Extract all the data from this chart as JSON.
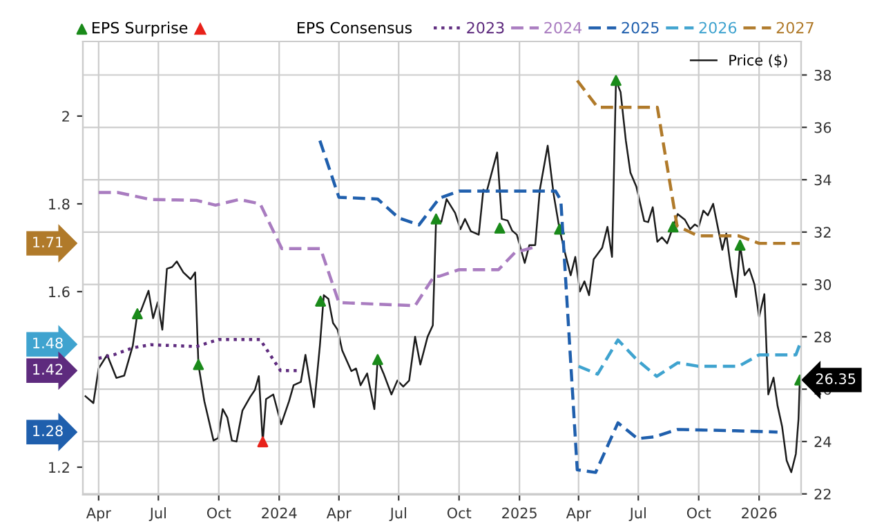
{
  "chart_data": {
    "type": "line",
    "legend_title": "EPS Consensus",
    "xlim": [
      "2023-03-08",
      "2026-03-06"
    ],
    "xticks": [
      {
        "value": "2023-04-01",
        "label": "Apr"
      },
      {
        "value": "2023-07-01",
        "label": "Jul"
      },
      {
        "value": "2023-10-01",
        "label": "Oct"
      },
      {
        "value": "2024-01-01",
        "label": "2024"
      },
      {
        "value": "2024-04-01",
        "label": "Apr"
      },
      {
        "value": "2024-07-01",
        "label": "Jul"
      },
      {
        "value": "2024-10-01",
        "label": "Oct"
      },
      {
        "value": "2025-01-01",
        "label": "2025"
      },
      {
        "value": "2025-04-01",
        "label": "Apr"
      },
      {
        "value": "2025-07-01",
        "label": "Jul"
      },
      {
        "value": "2025-10-01",
        "label": "Oct"
      },
      {
        "value": "2026-01-01",
        "label": "2026"
      }
    ],
    "ylim": [
      1.137,
      2.17
    ],
    "yticks": [
      1.2,
      1.6,
      1.8,
      2
    ],
    "y2label": null,
    "y2lim": [
      21.965,
      39.28
    ],
    "y2ticks": [
      22,
      24,
      26,
      28,
      30,
      32,
      34,
      36,
      38
    ],
    "grid": true,
    "annotations": [
      "1.71",
      "1.48",
      "1.42",
      "1.28"
    ],
    "legend": "top",
    "series": [
      {
        "name": "2023",
        "color": "#5e2b7e",
        "line_style": "dotted",
        "x": [
          "2023-04-01",
          "2023-04-24",
          "2023-05-23",
          "2023-06-19",
          "2023-08-28",
          "2023-10-01",
          "2023-12-03",
          "2024-01-03",
          "2024-02-01"
        ],
        "values": [
          1.448,
          1.456,
          1.472,
          1.479,
          1.475,
          1.491,
          1.491,
          1.42,
          1.42
        ]
      },
      {
        "name": "2024",
        "color": "#a97cc0",
        "line_style": "dashed",
        "x": [
          "2023-04-01",
          "2023-04-30",
          "2023-06-19",
          "2023-08-28",
          "2023-09-26",
          "2023-11-01",
          "2023-12-03",
          "2024-01-05",
          "2024-03-04",
          "2024-04-01",
          "2024-07-26",
          "2024-08-24",
          "2024-09-01",
          "2024-10-01",
          "2024-11-30",
          "2024-12-25",
          "2025-01-28"
        ],
        "values": [
          1.826,
          1.826,
          1.81,
          1.808,
          1.797,
          1.81,
          1.8,
          1.698,
          1.698,
          1.575,
          1.568,
          1.635,
          1.635,
          1.65,
          1.65,
          1.689,
          1.703
        ]
      },
      {
        "name": "2025",
        "color": "#1f5fad",
        "line_style": "dashed",
        "x": [
          "2024-03-03",
          "2024-04-01",
          "2024-05-30",
          "2024-07-01",
          "2024-08-01",
          "2024-09-01",
          "2024-10-01",
          "2025-02-25",
          "2025-03-05",
          "2025-03-30",
          "2025-04-27",
          "2025-05-31",
          "2025-06-30",
          "2025-07-25",
          "2025-08-30",
          "2025-11-25",
          "2026-01-29"
        ],
        "values": [
          1.944,
          1.815,
          1.811,
          1.768,
          1.752,
          1.813,
          1.829,
          1.829,
          1.808,
          1.194,
          1.188,
          1.301,
          1.265,
          1.269,
          1.286,
          1.283,
          1.28
        ]
      },
      {
        "name": "2026",
        "color": "#3fa3cf",
        "line_style": "dashed",
        "x": [
          "2025-04-01",
          "2025-04-30",
          "2025-05-31",
          "2025-06-28",
          "2025-07-29",
          "2025-08-30",
          "2025-09-30",
          "2025-12-01",
          "2026-01-01",
          "2026-02-26",
          "2026-03-04"
        ],
        "values": [
          1.43,
          1.412,
          1.49,
          1.446,
          1.407,
          1.438,
          1.43,
          1.43,
          1.456,
          1.456,
          1.48
        ]
      },
      {
        "name": "2027",
        "color": "#b07a2a",
        "line_style": "dashed",
        "x": [
          "2025-03-30",
          "2025-04-30",
          "2025-07-30",
          "2025-08-29",
          "2025-09-30",
          "2025-12-01",
          "2026-01-01",
          "2026-03-04"
        ],
        "values": [
          2.081,
          2.02,
          2.02,
          1.75,
          1.727,
          1.727,
          1.71,
          1.71
        ]
      },
      {
        "name": "Price ($)",
        "color": "#1a1a1a",
        "axis": "y2",
        "line_style": "solid",
        "x": [
          "2023-03-12",
          "2023-03-24",
          "2023-04-01",
          "2023-04-14",
          "2023-04-28",
          "2023-05-10",
          "2023-05-23",
          "2023-05-30",
          "2023-06-04",
          "2023-06-16",
          "2023-06-23",
          "2023-06-30",
          "2023-07-07",
          "2023-07-14",
          "2023-07-22",
          "2023-07-29",
          "2023-08-08",
          "2023-08-19",
          "2023-08-26",
          "2023-08-31",
          "2023-09-09",
          "2023-09-23",
          "2023-09-30",
          "2023-10-07",
          "2023-10-14",
          "2023-10-21",
          "2023-10-28",
          "2023-11-06",
          "2023-11-18",
          "2023-11-25",
          "2023-12-01",
          "2023-12-07",
          "2023-12-12",
          "2023-12-23",
          "2024-01-04",
          "2024-01-16",
          "2024-01-23",
          "2024-02-03",
          "2024-02-10",
          "2024-02-23",
          "2024-03-03",
          "2024-03-09",
          "2024-03-16",
          "2024-03-23",
          "2024-03-30",
          "2024-04-06",
          "2024-04-20",
          "2024-04-27",
          "2024-05-04",
          "2024-05-14",
          "2024-05-25",
          "2024-05-30",
          "2024-06-08",
          "2024-06-20",
          "2024-06-29",
          "2024-07-08",
          "2024-07-17",
          "2024-07-26",
          "2024-08-03",
          "2024-08-14",
          "2024-08-22",
          "2024-08-27",
          "2024-09-04",
          "2024-09-12",
          "2024-09-25",
          "2024-10-03",
          "2024-10-10",
          "2024-10-19",
          "2024-10-31",
          "2024-11-07",
          "2024-11-12",
          "2024-11-28",
          "2024-12-05",
          "2024-12-14",
          "2024-12-21",
          "2024-12-28",
          "2025-01-09",
          "2025-01-16",
          "2025-01-25",
          "2025-02-01",
          "2025-02-13",
          "2025-02-22",
          "2025-03-03",
          "2025-03-12",
          "2025-03-20",
          "2025-03-27",
          "2025-04-03",
          "2025-04-10",
          "2025-04-17",
          "2025-04-24",
          "2025-05-07",
          "2025-05-15",
          "2025-05-22",
          "2025-05-28",
          "2025-06-04",
          "2025-06-12",
          "2025-06-19",
          "2025-06-28",
          "2025-07-10",
          "2025-07-16",
          "2025-07-23",
          "2025-07-30",
          "2025-08-06",
          "2025-08-14",
          "2025-08-23",
          "2025-08-30",
          "2025-09-10",
          "2025-09-18",
          "2025-09-25",
          "2025-10-01",
          "2025-10-08",
          "2025-10-15",
          "2025-10-23",
          "2025-11-06",
          "2025-11-12",
          "2025-11-19",
          "2025-11-27",
          "2025-12-03",
          "2025-12-10",
          "2025-12-17",
          "2025-12-25",
          "2026-01-01",
          "2026-01-09",
          "2026-01-15",
          "2026-01-23",
          "2026-01-29",
          "2026-02-05",
          "2026-02-12",
          "2026-02-19",
          "2026-02-26",
          "2026-03-02",
          "2026-03-04"
        ],
        "values": [
          25.73,
          25.47,
          26.79,
          27.31,
          26.43,
          26.52,
          27.66,
          28.88,
          28.97,
          29.76,
          28.71,
          29.32,
          28.27,
          30.6,
          30.67,
          30.88,
          30.46,
          30.2,
          30.46,
          26.94,
          25.54,
          24.04,
          24.13,
          25.24,
          24.92,
          24.04,
          24.0,
          25.18,
          25.71,
          25.97,
          26.5,
          23.99,
          25.62,
          25.8,
          24.66,
          25.54,
          26.15,
          26.28,
          27.31,
          25.31,
          27.66,
          29.59,
          29.45,
          28.53,
          28.27,
          27.48,
          26.69,
          26.79,
          26.15,
          26.6,
          25.24,
          27.13,
          26.6,
          25.8,
          26.33,
          26.1,
          26.33,
          28.0,
          26.94,
          28.0,
          28.44,
          32.5,
          32.39,
          33.26,
          32.73,
          32.11,
          32.5,
          32.03,
          31.9,
          33.62,
          33.54,
          35.04,
          32.5,
          32.44,
          32.05,
          31.9,
          30.82,
          31.5,
          31.5,
          33.62,
          35.3,
          33.45,
          32.11,
          31.14,
          30.35,
          31.05,
          29.73,
          30.12,
          29.59,
          30.96,
          31.4,
          32.2,
          31.05,
          37.79,
          37.35,
          35.5,
          34.27,
          33.74,
          32.42,
          32.38,
          32.95,
          31.63,
          31.8,
          31.57,
          32.2,
          32.69,
          32.47,
          32.11,
          32.29,
          32.2,
          32.82,
          32.64,
          33.08,
          31.32,
          31.94,
          30.62,
          29.52,
          31.5,
          30.35,
          30.6,
          30.0,
          28.76,
          29.63,
          25.8,
          26.44,
          25.38,
          24.58,
          23.27,
          22.83,
          23.53,
          24.85,
          26.35
        ],
        "value_labels": [
          null,
          null,
          null,
          null,
          null,
          null,
          null,
          null,
          null,
          null,
          null,
          null,
          null,
          null,
          null,
          null,
          null,
          null,
          null,
          null,
          null,
          null,
          null,
          null,
          null,
          null,
          null,
          null,
          null,
          null,
          null,
          null,
          null,
          null,
          null,
          null,
          null,
          null,
          null,
          null,
          null,
          null,
          null,
          null,
          null,
          null,
          null,
          null,
          null,
          null,
          null,
          null,
          null,
          null,
          null,
          null,
          null,
          null,
          null,
          null,
          null,
          null,
          null,
          null,
          null,
          null,
          null,
          null,
          null,
          null,
          null,
          null,
          null,
          null,
          null,
          null,
          null,
          null,
          null,
          null,
          null,
          null,
          null,
          null,
          null,
          null,
          null,
          null,
          null,
          null,
          null,
          null,
          null,
          null,
          null,
          null,
          null,
          null,
          null,
          null,
          null,
          null,
          null,
          null,
          null,
          null,
          null,
          null,
          null,
          null,
          null,
          null,
          null,
          null,
          null,
          null,
          null,
          null,
          null,
          null,
          null,
          null,
          null,
          null,
          null,
          null,
          null,
          null,
          null,
          null,
          null,
          "26.35"
        ]
      },
      {
        "name": "EPS Surprise",
        "type": "scatter",
        "axis": "y2",
        "marker": "triangle",
        "color": "#1a8a1a",
        "x": [
          "2023-05-30",
          "2023-08-31",
          "2024-03-04",
          "2024-05-30",
          "2024-08-27",
          "2024-12-02",
          "2025-03-03",
          "2025-05-28",
          "2025-08-23",
          "2025-12-03",
          "2026-03-04"
        ],
        "values": [
          28.88,
          26.94,
          29.36,
          27.13,
          32.5,
          32.15,
          32.11,
          37.79,
          32.2,
          31.5,
          26.35
        ]
      },
      {
        "type": "scatter",
        "axis": "y2",
        "marker": "triangle",
        "color": "#e8221a",
        "x": [
          "2023-12-07"
        ],
        "values": [
          23.99
        ]
      }
    ]
  }
}
